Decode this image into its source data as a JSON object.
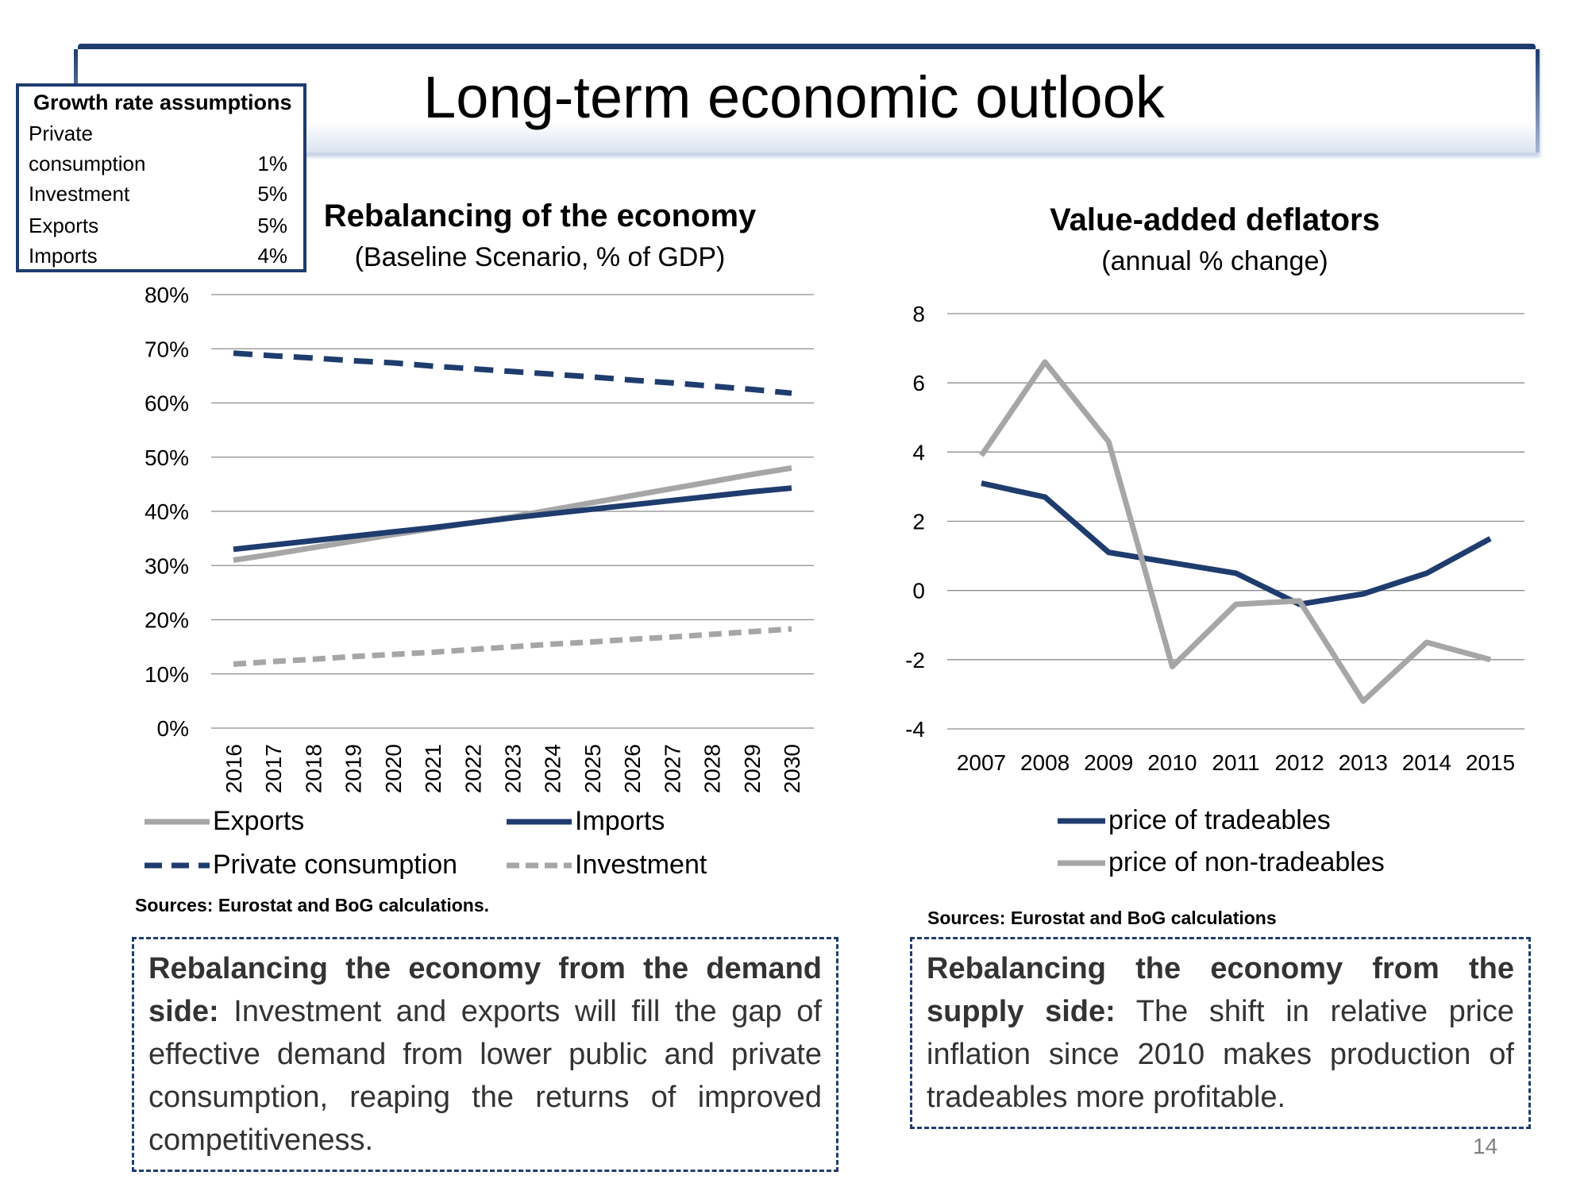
{
  "page": {
    "title": "Long-term economic outlook",
    "page_number": "14"
  },
  "assumptions": {
    "heading": "Growth rate assumptions",
    "rows": [
      {
        "label_line1": "Private",
        "label_line2": "consumption",
        "value": "1%"
      },
      {
        "label": "Investment",
        "value": "5%"
      },
      {
        "label": "Exports",
        "value": "5%"
      },
      {
        "label": "Imports",
        "value": "4%"
      }
    ]
  },
  "left_chart": {
    "source": "Sources: Eurostat and BoG calculations."
  },
  "right_chart": {
    "source": "Sources: Eurostat and BoG calculations"
  },
  "notes": {
    "left": {
      "bold": "Rebalancing the economy from the demand side:",
      "text": " Investment and exports will fill the gap of effective demand from lower public and private consumption, reaping the returns of improved competitiveness."
    },
    "right": {
      "bold": "Rebalancing the economy from the supply side:",
      "text": " The shift in relative price inflation since 2010 makes production of tradeables more profitable."
    }
  },
  "colors": {
    "navy": "#1f3c6e",
    "gray": "#a6a6a6",
    "grid": "#8c8c8c"
  },
  "chart_data": [
    {
      "type": "line",
      "title": "Rebalancing of the economy",
      "subtitle": "(Baseline Scenario, % of GDP)",
      "x": [
        "2016",
        "2017",
        "2018",
        "2019",
        "2020",
        "2021",
        "2022",
        "2023",
        "2024",
        "2025",
        "2026",
        "2027",
        "2028",
        "2029",
        "2030"
      ],
      "ylim": [
        0,
        80
      ],
      "y_ticks": [
        "0%",
        "10%",
        "20%",
        "30%",
        "40%",
        "50%",
        "60%",
        "70%",
        "80%"
      ],
      "grid": true,
      "legend_position": "bottom",
      "series": [
        {
          "name": "Exports",
          "color": "#a6a6a6",
          "dash": false,
          "values": [
            31,
            32.1,
            33.3,
            34.5,
            35.7,
            36.8,
            37.9,
            39.0,
            40.3,
            41.6,
            42.9,
            44.2,
            45.5,
            46.8,
            48.0
          ]
        },
        {
          "name": "Imports",
          "color": "#1f3c6e",
          "dash": false,
          "values": [
            33,
            33.8,
            34.6,
            35.4,
            36.2,
            37.0,
            37.9,
            38.8,
            39.6,
            40.4,
            41.2,
            42.0,
            42.8,
            43.6,
            44.3
          ]
        },
        {
          "name": "Private consumption",
          "color": "#1f3c6e",
          "dash": true,
          "values": [
            69.2,
            68.7,
            68.3,
            67.8,
            67.4,
            66.8,
            66.3,
            65.8,
            65.3,
            64.8,
            64.2,
            63.7,
            63.1,
            62.5,
            61.8
          ]
        },
        {
          "name": "Investment",
          "color": "#a6a6a6",
          "dash": true,
          "values": [
            11.8,
            12.3,
            12.7,
            13.2,
            13.6,
            14.0,
            14.5,
            15.0,
            15.5,
            15.9,
            16.4,
            16.8,
            17.3,
            17.8,
            18.3
          ]
        }
      ]
    },
    {
      "type": "line",
      "title": "Value-added deflators",
      "subtitle": "(annual % change)",
      "x": [
        "2007",
        "2008",
        "2009",
        "2010",
        "2011",
        "2012",
        "2013",
        "2014",
        "2015"
      ],
      "ylim": [
        -4,
        8
      ],
      "y_ticks": [
        "-4",
        "-2",
        "0",
        "2",
        "4",
        "6",
        "8"
      ],
      "grid": true,
      "legend_position": "bottom",
      "series": [
        {
          "name": "price of tradeables",
          "color": "#1f3c6e",
          "dash": false,
          "values": [
            3.1,
            2.7,
            1.1,
            0.8,
            0.5,
            -0.4,
            -0.1,
            0.5,
            1.5
          ]
        },
        {
          "name": "price of non-tradeables",
          "color": "#a6a6a6",
          "dash": false,
          "values": [
            3.9,
            6.6,
            4.3,
            -2.2,
            -0.4,
            -0.3,
            -3.2,
            -1.5,
            -2.0
          ]
        }
      ]
    }
  ]
}
